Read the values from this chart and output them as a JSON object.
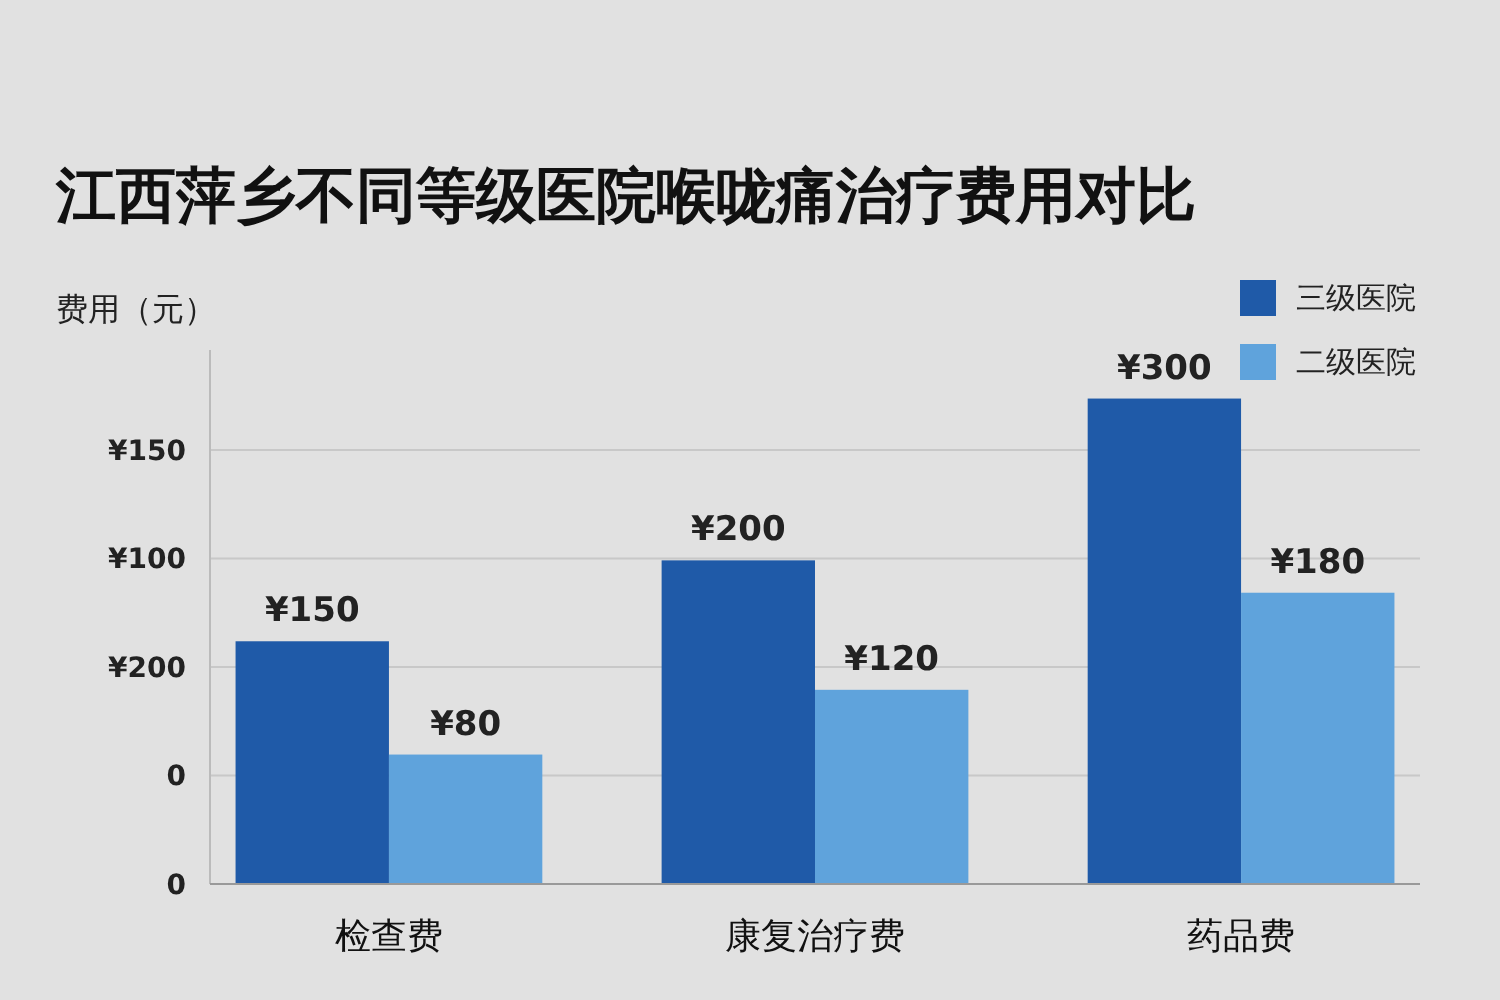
{
  "chart_data": {
    "type": "bar",
    "title": "江西萍乡不同等级医院喉咙痛治疗费用对比",
    "ylabel": "费用（元）",
    "categories": [
      "检查费",
      "康复治疗费",
      "药品费"
    ],
    "series": [
      {
        "name": "三级医院",
        "color": "#1f5aa8",
        "values": [
          150,
          200,
          300
        ],
        "value_labels": [
          "¥150",
          "¥200",
          "¥300"
        ]
      },
      {
        "name": "二级医院",
        "color": "#5fa3dc",
        "values": [
          80,
          120,
          180
        ],
        "value_labels": [
          "¥80",
          "¥120",
          "¥180"
        ]
      }
    ],
    "annotations": [
      "¥150",
      "¥100",
      "¥200",
      "0",
      "0"
    ],
    "grid": "y",
    "legend": "top right"
  }
}
